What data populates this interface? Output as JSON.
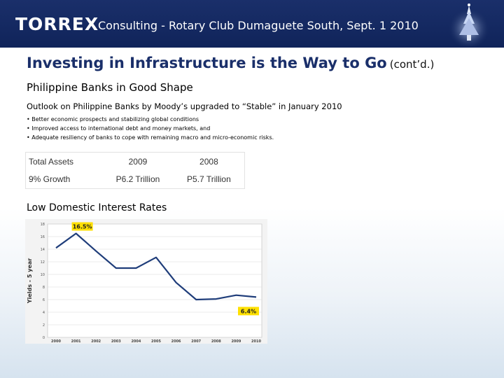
{
  "header": {
    "brand": "TORREX",
    "title": "Consulting - Rotary Club Dumaguete South, Sept. 1 2010",
    "logo_icon": "christmas-tree-icon"
  },
  "slide": {
    "title": "Investing in Infrastructure is the Way to Go",
    "title_suffix": "(cont’d.)",
    "section1_heading": "Philippine Banks in Good Shape",
    "outlook": "Outlook on Philippine Banks by Moody’s upgraded to “Stable” in January 2010",
    "bullets": [
      "• Better economic prospects and stabilizing global conditions",
      "• Improved access to international debt and money markets, and",
      "• Adequate resiliency of banks to cope with remaining macro and micro-economic risks."
    ],
    "assets_table": {
      "header": [
        "Total Assets",
        "2009",
        "2008"
      ],
      "row": [
        "9% Growth",
        "P6.2 Trillion",
        "P5.7 Trillion"
      ]
    },
    "section2_heading": "Low Domestic Interest Rates"
  },
  "chart_data": {
    "type": "line",
    "title": "",
    "xlabel": "",
    "ylabel": "Yields - 5 year",
    "ylim": [
      0,
      18
    ],
    "yticks": [
      "0",
      "2",
      "4",
      "6",
      "8",
      "10",
      "12",
      "14",
      "16",
      "18"
    ],
    "x": [
      "2000",
      "2001",
      "2002",
      "2003",
      "2004",
      "2005",
      "2006",
      "2007",
      "2008",
      "2009",
      "2010"
    ],
    "series": [
      {
        "values": [
          14.2,
          16.5,
          13.7,
          11.0,
          11.0,
          12.7,
          8.7,
          6.0,
          6.1,
          6.7,
          6.4
        ]
      }
    ],
    "annotations": [
      {
        "label": "16.5%",
        "x": "2001",
        "y": 16.5
      },
      {
        "label": "6.4%",
        "x": "2010",
        "y": 6.4
      }
    ],
    "line_color": "#1f3d7a",
    "annotation_bg": "#ffe000",
    "grid": true
  }
}
